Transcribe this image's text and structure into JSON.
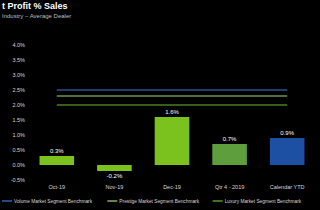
{
  "chart_data": {
    "type": "bar",
    "title": "t Profit % Sales",
    "subtitle": "Industry – Average Dealer",
    "categories": [
      "Oct-19",
      "Nov-19",
      "Dec-19",
      "Qtr 4 - 2019",
      "Calendar YTD"
    ],
    "series": [
      {
        "type": "bar",
        "colors": [
          "#7cc21f",
          "#7cc21f",
          "#7cc21f",
          "#5e9e3c",
          "#1d4fa3"
        ],
        "values": [
          0.3,
          -0.2,
          1.6,
          0.7,
          0.9
        ],
        "value_labels": [
          "0.3%",
          "-0.2%",
          "1.6%",
          "0.7%",
          "0.9%"
        ]
      },
      {
        "name": "Volume Market Segment Benchmark",
        "type": "line",
        "color": "#3a78e0",
        "values": [
          2.5,
          2.5,
          2.5,
          2.5,
          2.5
        ]
      },
      {
        "name": "Prestige Market Segment Benchmark",
        "type": "line",
        "color": "#a6dc74",
        "values": [
          2.3,
          2.3,
          2.3,
          2.3,
          2.3
        ]
      },
      {
        "name": "Luxury Market Segment Benchmark",
        "type": "line",
        "color": "#6cbf2a",
        "values": [
          2.0,
          2.0,
          2.0,
          2.0,
          2.0
        ]
      }
    ],
    "ylim": [
      -0.5,
      4.0
    ],
    "yticks": [
      {
        "value": -0.5,
        "label": "-0.5%"
      },
      {
        "value": 0,
        "label": "0.0%"
      },
      {
        "value": 0.5,
        "label": "0.5%"
      },
      {
        "value": 1.0,
        "label": "1.0%"
      },
      {
        "value": 1.5,
        "label": "1.5%"
      },
      {
        "value": 2.0,
        "label": "2.0%"
      },
      {
        "value": 2.5,
        "label": "2.5%"
      },
      {
        "value": 3.0,
        "label": "3.0%"
      },
      {
        "value": 3.5,
        "label": "3.5%"
      },
      {
        "value": 4.0,
        "label": "4.0%"
      }
    ],
    "grid": false,
    "data_labels": true,
    "legend": "bottom"
  }
}
